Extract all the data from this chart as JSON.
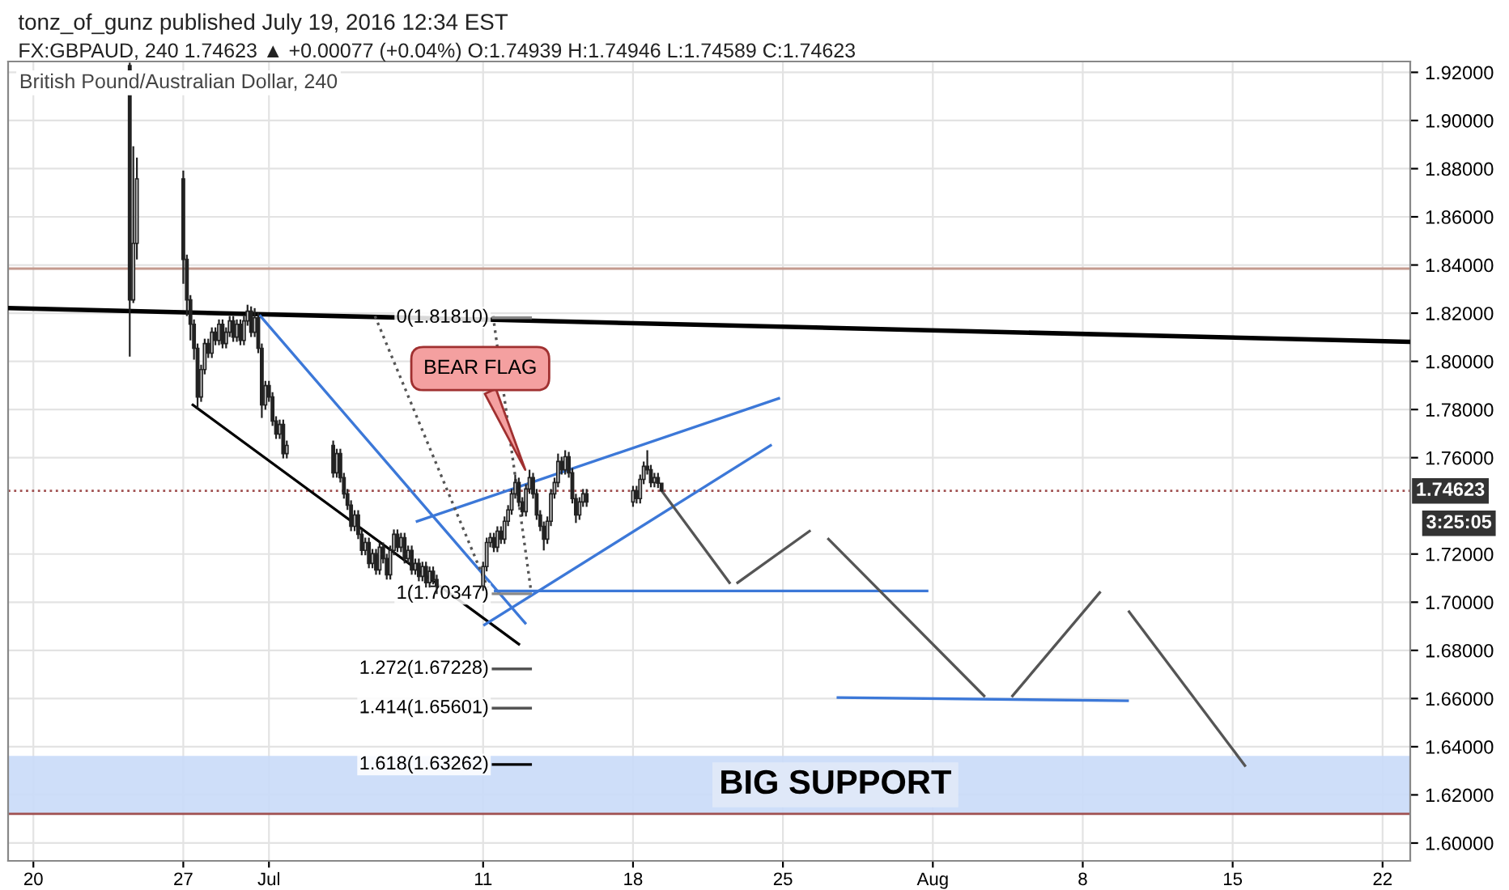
{
  "chart_data": {
    "type": "candlestick",
    "title": "British Pound/Australian Dollar, 240",
    "annotations": [
      "tonz_of_gunz published July 19, 2016 12:34 EST",
      "FX:GBPAUD, 240 1.74623 ▲ +0.00077 (+0.04%) O:1.74939 H:1.74946 L:1.74589 C:1.74623",
      "3:25:05",
      {
        "text": "BEAR FLAG",
        "x": "2016-07-12T23:12",
        "y": 1.755
      }
    ],
    "x": [
      "2016-06-24T12:00",
      "2016-06-24T16:00",
      "2016-06-24T20:00",
      "2016-06-27T00:00",
      "2016-06-27T04:00",
      "2016-06-27T08:00",
      "2016-06-27T12:00",
      "2016-06-27T16:00",
      "2016-06-27T20:00",
      "2016-06-28T00:00",
      "2016-06-28T04:00",
      "2016-06-28T08:00",
      "2016-06-28T12:00",
      "2016-06-28T16:00",
      "2016-06-28T20:00",
      "2016-06-29T00:00",
      "2016-06-29T04:00",
      "2016-06-29T08:00",
      "2016-06-29T12:00",
      "2016-06-29T16:00",
      "2016-06-29T20:00",
      "2016-06-30T00:00",
      "2016-06-30T04:00",
      "2016-06-30T08:00",
      "2016-06-30T12:00",
      "2016-06-30T16:00",
      "2016-06-30T20:00",
      "2016-07-01T00:00",
      "2016-07-01T04:00",
      "2016-07-01T08:00",
      "2016-07-01T12:00",
      "2016-07-01T16:00",
      "2016-07-01T20:00",
      "2016-07-04T00:00",
      "2016-07-04T04:00",
      "2016-07-04T08:00",
      "2016-07-04T12:00",
      "2016-07-04T16:00",
      "2016-07-04T20:00",
      "2016-07-05T00:00",
      "2016-07-05T04:00",
      "2016-07-05T08:00",
      "2016-07-05T12:00",
      "2016-07-05T16:00",
      "2016-07-05T20:00",
      "2016-07-06T00:00",
      "2016-07-06T04:00",
      "2016-07-06T08:00",
      "2016-07-06T12:00",
      "2016-07-06T16:00",
      "2016-07-06T20:00",
      "2016-07-07T00:00",
      "2016-07-07T04:00",
      "2016-07-07T08:00",
      "2016-07-07T12:00",
      "2016-07-07T16:00",
      "2016-07-07T20:00",
      "2016-07-08T00:00",
      "2016-07-08T04:00",
      "2016-07-08T08:00",
      "2016-07-08T12:00",
      "2016-07-08T16:00",
      "2016-07-08T20:00",
      "2016-07-11T00:00",
      "2016-07-11T04:00",
      "2016-07-11T08:00",
      "2016-07-11T12:00",
      "2016-07-11T16:00",
      "2016-07-11T20:00",
      "2016-07-12T00:00",
      "2016-07-12T04:00",
      "2016-07-12T08:00",
      "2016-07-12T12:00",
      "2016-07-12T16:00",
      "2016-07-12T20:00",
      "2016-07-13T00:00",
      "2016-07-13T04:00",
      "2016-07-13T08:00",
      "2016-07-13T12:00",
      "2016-07-13T16:00",
      "2016-07-13T20:00",
      "2016-07-14T00:00",
      "2016-07-14T04:00",
      "2016-07-14T08:00",
      "2016-07-14T12:00",
      "2016-07-14T16:00",
      "2016-07-14T20:00",
      "2016-07-15T00:00",
      "2016-07-15T04:00",
      "2016-07-15T08:00",
      "2016-07-15T12:00",
      "2016-07-15T16:00",
      "2016-07-15T20:00",
      "2016-07-18T00:00",
      "2016-07-18T04:00",
      "2016-07-18T08:00",
      "2016-07-18T12:00",
      "2016-07-18T16:00",
      "2016-07-18T20:00",
      "2016-07-19T00:00",
      "2016-07-19T04:00",
      "2016-07-19T08:00"
    ],
    "ohlc": [
      [
        1.9228,
        1.924,
        1.802,
        1.8255
      ],
      [
        1.8255,
        1.8893,
        1.8242,
        1.849
      ],
      [
        1.849,
        1.8846,
        1.8423,
        1.8758
      ],
      [
        1.8758,
        1.8792,
        1.8322,
        1.8423
      ],
      [
        1.8423,
        1.8443,
        1.8188,
        1.8255
      ],
      [
        1.8255,
        1.8275,
        1.8087,
        1.8154
      ],
      [
        1.8154,
        1.8174,
        1.8007,
        1.8054
      ],
      [
        1.8054,
        1.8074,
        1.7805,
        1.7852
      ],
      [
        1.7852,
        1.7986,
        1.7832,
        1.7966
      ],
      [
        1.7966,
        1.8094,
        1.7946,
        1.8074
      ],
      [
        1.8074,
        1.8094,
        1.8014,
        1.8034
      ],
      [
        1.8034,
        1.8141,
        1.8014,
        1.8121
      ],
      [
        1.8121,
        1.8141,
        1.8067,
        1.8087
      ],
      [
        1.8087,
        1.8174,
        1.8067,
        1.8154
      ],
      [
        1.8154,
        1.8174,
        1.8054,
        1.8074
      ],
      [
        1.8074,
        1.8141,
        1.8054,
        1.8121
      ],
      [
        1.8121,
        1.8188,
        1.8101,
        1.8168
      ],
      [
        1.8168,
        1.8188,
        1.8081,
        1.8101
      ],
      [
        1.8101,
        1.8174,
        1.8081,
        1.8154
      ],
      [
        1.8154,
        1.8174,
        1.8067,
        1.8087
      ],
      [
        1.8087,
        1.8188,
        1.8067,
        1.8168
      ],
      [
        1.8168,
        1.8235,
        1.8148,
        1.8208
      ],
      [
        1.8208,
        1.8228,
        1.8101,
        1.8121
      ],
      [
        1.8121,
        1.8221,
        1.8101,
        1.8181
      ],
      [
        1.8181,
        1.8201,
        1.8034,
        1.8054
      ],
      [
        1.8054,
        1.8074,
        1.7765,
        1.7819
      ],
      [
        1.7819,
        1.7919,
        1.7799,
        1.7899
      ],
      [
        1.7899,
        1.7919,
        1.7832,
        1.7852
      ],
      [
        1.7852,
        1.7872,
        1.7732,
        1.7752
      ],
      [
        1.7752,
        1.7772,
        1.7678,
        1.7698
      ],
      [
        1.7698,
        1.7758,
        1.7678,
        1.7738
      ],
      [
        1.7738,
        1.7758,
        1.7597,
        1.7617
      ],
      [
        1.7617,
        1.7671,
        1.7597,
        1.7651
      ],
      [
        1.7651,
        1.7671,
        1.7517,
        1.7537
      ],
      [
        1.7537,
        1.7637,
        1.7517,
        1.7617
      ],
      [
        1.7617,
        1.7637,
        1.7497,
        1.7517
      ],
      [
        1.7517,
        1.7537,
        1.743,
        1.745
      ],
      [
        1.745,
        1.747,
        1.7383,
        1.7403
      ],
      [
        1.7403,
        1.7423,
        1.7295,
        1.7315
      ],
      [
        1.7315,
        1.7382,
        1.7295,
        1.7362
      ],
      [
        1.7362,
        1.7382,
        1.7262,
        1.7282
      ],
      [
        1.7282,
        1.7302,
        1.7195,
        1.7215
      ],
      [
        1.7215,
        1.7268,
        1.7195,
        1.7248
      ],
      [
        1.7248,
        1.7268,
        1.7141,
        1.7161
      ],
      [
        1.7161,
        1.7221,
        1.7141,
        1.7201
      ],
      [
        1.7201,
        1.7221,
        1.7114,
        1.7134
      ],
      [
        1.7134,
        1.7248,
        1.7114,
        1.7228
      ],
      [
        1.7228,
        1.7248,
        1.7161,
        1.7181
      ],
      [
        1.7181,
        1.7201,
        1.7094,
        1.7114
      ],
      [
        1.7114,
        1.7235,
        1.7094,
        1.7215
      ],
      [
        1.7215,
        1.7302,
        1.7195,
        1.7282
      ],
      [
        1.7282,
        1.7302,
        1.7208,
        1.7228
      ],
      [
        1.7228,
        1.7288,
        1.7208,
        1.7268
      ],
      [
        1.7268,
        1.7288,
        1.7161,
        1.7181
      ],
      [
        1.7181,
        1.7235,
        1.7161,
        1.7215
      ],
      [
        1.7215,
        1.7235,
        1.7114,
        1.7134
      ],
      [
        1.7134,
        1.7181,
        1.7114,
        1.7161
      ],
      [
        1.7161,
        1.7181,
        1.7087,
        1.7107
      ],
      [
        1.7107,
        1.7168,
        1.7087,
        1.7148
      ],
      [
        1.7148,
        1.7168,
        1.7061,
        1.7081
      ],
      [
        1.7081,
        1.7148,
        1.7061,
        1.7128
      ],
      [
        1.7128,
        1.7148,
        1.7074,
        1.7094
      ],
      [
        1.7094,
        1.7114,
        1.7034,
        1.7067
      ],
      [
        1.7067,
        1.7168,
        1.7047,
        1.7148
      ],
      [
        1.7148,
        1.7268,
        1.7128,
        1.7248
      ],
      [
        1.7248,
        1.7288,
        1.7228,
        1.7268
      ],
      [
        1.7268,
        1.7288,
        1.7208,
        1.7228
      ],
      [
        1.7228,
        1.7315,
        1.7208,
        1.7295
      ],
      [
        1.7295,
        1.7315,
        1.7242,
        1.7262
      ],
      [
        1.7262,
        1.7356,
        1.7242,
        1.7336
      ],
      [
        1.7336,
        1.7403,
        1.7316,
        1.7383
      ],
      [
        1.7383,
        1.747,
        1.7363,
        1.745
      ],
      [
        1.745,
        1.753,
        1.743,
        1.7497
      ],
      [
        1.7497,
        1.7517,
        1.7396,
        1.7416
      ],
      [
        1.7416,
        1.7436,
        1.7356,
        1.7376
      ],
      [
        1.7376,
        1.749,
        1.7356,
        1.747
      ],
      [
        1.747,
        1.755,
        1.745,
        1.7517
      ],
      [
        1.7517,
        1.7537,
        1.743,
        1.745
      ],
      [
        1.745,
        1.747,
        1.7342,
        1.7362
      ],
      [
        1.7362,
        1.7382,
        1.7295,
        1.7315
      ],
      [
        1.7315,
        1.7335,
        1.7215,
        1.7262
      ],
      [
        1.7262,
        1.7356,
        1.7242,
        1.7336
      ],
      [
        1.7336,
        1.747,
        1.7316,
        1.745
      ],
      [
        1.745,
        1.7517,
        1.743,
        1.7497
      ],
      [
        1.7497,
        1.7617,
        1.7477,
        1.7584
      ],
      [
        1.7584,
        1.7604,
        1.753,
        1.755
      ],
      [
        1.755,
        1.7631,
        1.753,
        1.7604
      ],
      [
        1.7604,
        1.7624,
        1.7517,
        1.7537
      ],
      [
        1.7537,
        1.7557,
        1.741,
        1.743
      ],
      [
        1.743,
        1.745,
        1.7329,
        1.7362
      ],
      [
        1.7362,
        1.7436,
        1.7342,
        1.7416
      ],
      [
        1.7416,
        1.747,
        1.7396,
        1.745
      ],
      [
        1.745,
        1.747,
        1.7396,
        1.7416
      ],
      [
        1.7416,
        1.7483,
        1.7396,
        1.7463
      ],
      [
        1.7463,
        1.7483,
        1.741,
        1.743
      ],
      [
        1.743,
        1.753,
        1.741,
        1.751
      ],
      [
        1.751,
        1.7584,
        1.749,
        1.7564
      ],
      [
        1.7564,
        1.7631,
        1.753,
        1.755
      ],
      [
        1.755,
        1.757,
        1.7477,
        1.7497
      ],
      [
        1.7497,
        1.7537,
        1.7477,
        1.7517
      ],
      [
        1.7517,
        1.7537,
        1.7474,
        1.74939
      ],
      [
        1.74939,
        1.74946,
        1.74589,
        1.74623
      ]
    ],
    "series": [
      {
        "type": "line",
        "color": "#000000",
        "x": [
          "2016-06-18T19:40",
          "2016-08-23T07:00"
        ],
        "values": [
          1.8221,
          1.8081
        ]
      },
      {
        "type": "line",
        "color": "#000000",
        "x": [
          "2016-06-27T10:48",
          "2016-07-12T16:00"
        ],
        "values": [
          1.7819,
          1.6826
        ]
      },
      {
        "type": "line",
        "color": "#3c78d8",
        "x": [
          "2016-06-30T14:24",
          "2016-07-12T23:12"
        ],
        "values": [
          1.8188,
          1.6913
        ]
      },
      {
        "type": "line",
        "color": "#3c78d8",
        "x": [
          "2016-07-11T01:36",
          "2016-07-24T10:10"
        ],
        "values": [
          1.6906,
          1.7651
        ]
      },
      {
        "type": "line",
        "color": "#3c78d8",
        "x": [
          "2016-07-07T22:00",
          "2016-07-24T19:20"
        ],
        "values": [
          1.7336,
          1.7846
        ]
      },
      {
        "type": "line",
        "color": "#3c78d8",
        "x": [
          "2016-07-11T13:36",
          "2016-07-31T17:30"
        ],
        "values": [
          1.7047,
          1.7047
        ]
      },
      {
        "type": "line",
        "color": "#3c78d8",
        "x": [
          "2016-07-27T13:40",
          "2016-08-10T02:10"
        ],
        "values": [
          1.6604,
          1.6591
        ]
      },
      {
        "type": "line",
        "color": "#555555",
        "line_style": "dotted",
        "x": [
          "2016-07-05T22:48",
          "2016-07-11T05:12"
        ],
        "values": [
          1.8188,
          1.706
        ]
      },
      {
        "type": "line",
        "color": "#555555",
        "line_style": "dotted",
        "x": [
          "2016-07-11T11:12",
          "2016-07-13T05:12"
        ],
        "values": [
          1.8188,
          1.706
        ]
      },
      {
        "type": "line",
        "color": "#888888",
        "name": "0(1.81810)",
        "x": [
          "2016-07-11T11:12",
          "2016-07-13T05:12"
        ],
        "values": [
          1.8181,
          1.8181
        ]
      },
      {
        "type": "line",
        "color": "#888888",
        "name": "1(1.70347)",
        "x": [
          "2016-07-11T11:12",
          "2016-07-13T05:12"
        ],
        "values": [
          1.7035,
          1.7035
        ]
      },
      {
        "type": "line",
        "color": "#555555",
        "name": "1.272(1.67228)",
        "x": [
          "2016-07-11T11:12",
          "2016-07-13T05:12"
        ],
        "values": [
          1.6723,
          1.6723
        ]
      },
      {
        "type": "line",
        "color": "#555555",
        "name": "1.414(1.65601)",
        "x": [
          "2016-07-11T11:12",
          "2016-07-13T05:12"
        ],
        "values": [
          1.656,
          1.656
        ]
      },
      {
        "type": "line",
        "color": "#000000",
        "name": "1.618(1.63262)",
        "x": [
          "2016-07-11T11:12",
          "2016-07-13T05:12"
        ],
        "values": [
          1.6326,
          1.6326
        ]
      },
      {
        "type": "line",
        "color": "#555555",
        "x": [
          "2016-07-19T08:00",
          "2016-07-22T12:05"
        ],
        "values": [
          1.7463,
          1.7081
        ]
      },
      {
        "type": "line",
        "color": "#555555",
        "x": [
          "2016-07-22T21:15",
          "2016-07-26T05:45"
        ],
        "values": [
          1.7081,
          1.7295
        ]
      },
      {
        "type": "line",
        "color": "#555555",
        "x": [
          "2016-07-27T03:05",
          "2016-08-03T09:25"
        ],
        "values": [
          1.7262,
          1.6611
        ]
      },
      {
        "type": "line",
        "color": "#555555",
        "x": [
          "2016-08-04T17:15",
          "2016-08-08T19:00"
        ],
        "values": [
          1.6611,
          1.704
        ]
      },
      {
        "type": "line",
        "color": "#555555",
        "x": [
          "2016-08-10T04:00",
          "2016-08-15T13:40"
        ],
        "values": [
          1.696,
          1.6322
        ]
      }
    ],
    "ref_lines": [
      {
        "axis": "y",
        "value": 1.8385,
        "color": "#c49a8e"
      },
      {
        "axis": "y",
        "value": 1.6121,
        "color": "#a05050"
      },
      {
        "axis": "y",
        "value": 1.74623,
        "label": "1.74623",
        "color": "#a05050",
        "line_style": "dotted"
      }
    ],
    "bands": [
      {
        "axis": "y",
        "from": 1.6121,
        "to": 1.6362,
        "label": "BIG SUPPORT",
        "color": "#c9daf8"
      }
    ],
    "xlim": [
      "2016-06-18T19:40",
      "2016-08-23T07:00"
    ],
    "xticks": [
      {
        "value": "2016-06-20",
        "label": "20"
      },
      {
        "value": "2016-06-27",
        "label": "27"
      },
      {
        "value": "2016-07-01",
        "label": "Jul"
      },
      {
        "value": "2016-07-11",
        "label": "11"
      },
      {
        "value": "2016-07-18",
        "label": "18"
      },
      {
        "value": "2016-07-25",
        "label": "25"
      },
      {
        "value": "2016-08-01",
        "label": "Aug"
      },
      {
        "value": "2016-08-08",
        "label": "8"
      },
      {
        "value": "2016-08-15",
        "label": "15"
      },
      {
        "value": "2016-08-22",
        "label": "22"
      }
    ],
    "ylim": [
      1.5926,
      1.9245
    ],
    "yticks": [
      {
        "value": 1.6,
        "label": "1.60000"
      },
      {
        "value": 1.62,
        "label": "1.62000"
      },
      {
        "value": 1.64,
        "label": "1.64000"
      },
      {
        "value": 1.66,
        "label": "1.66000"
      },
      {
        "value": 1.68,
        "label": "1.68000"
      },
      {
        "value": 1.7,
        "label": "1.70000"
      },
      {
        "value": 1.72,
        "label": "1.72000"
      },
      {
        "value": 1.76,
        "label": "1.76000"
      },
      {
        "value": 1.78,
        "label": "1.78000"
      },
      {
        "value": 1.8,
        "label": "1.80000"
      },
      {
        "value": 1.82,
        "label": "1.82000"
      },
      {
        "value": 1.84,
        "label": "1.84000"
      },
      {
        "value": 1.86,
        "label": "1.86000"
      },
      {
        "value": 1.88,
        "label": "1.88000"
      },
      {
        "value": 1.9,
        "label": "1.90000"
      },
      {
        "value": 1.92,
        "label": "1.92000"
      }
    ],
    "grid": true
  }
}
